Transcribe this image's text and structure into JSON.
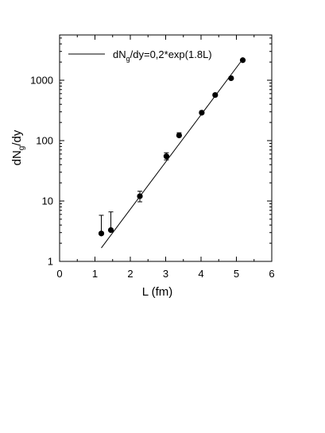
{
  "chart_data": {
    "type": "scatter",
    "xlabel": "L (fm)",
    "ylabel_main": "dN",
    "ylabel_sub": "g",
    "ylabel_tail": "/dy",
    "xlim": [
      0,
      6
    ],
    "ylim": [
      1,
      5000
    ],
    "yscale": "log",
    "xticks": [
      0,
      1,
      2,
      3,
      4,
      5,
      6
    ],
    "xtick_labels": [
      "0",
      "1",
      "2",
      "3",
      "4",
      "5",
      "6"
    ],
    "yticks": [
      1,
      10,
      100,
      1000
    ],
    "ytick_labels": [
      "1",
      "10",
      "100",
      "1000"
    ],
    "grid": false,
    "legend_position": "top",
    "points": {
      "x": [
        1.18,
        1.45,
        2.27,
        3.02,
        3.38,
        4.02,
        4.4,
        4.85,
        5.18
      ],
      "y": [
        2.9,
        3.3,
        12,
        55,
        122,
        290,
        570,
        1080,
        2150
      ],
      "yerr_upper": [
        5.8,
        6.6,
        14.5,
        63,
        135,
        310,
        600,
        1130,
        2220
      ],
      "yerr_lower": [
        null,
        null,
        9.7,
        48,
        null,
        null,
        null,
        null,
        null
      ]
    },
    "fit": {
      "label_main": "dN",
      "label_sub": "g",
      "label_tail": "/dy=0,2*exp(1.8L)",
      "a": 0.2,
      "b": 1.8,
      "x_range": [
        1.18,
        5.18
      ]
    }
  }
}
